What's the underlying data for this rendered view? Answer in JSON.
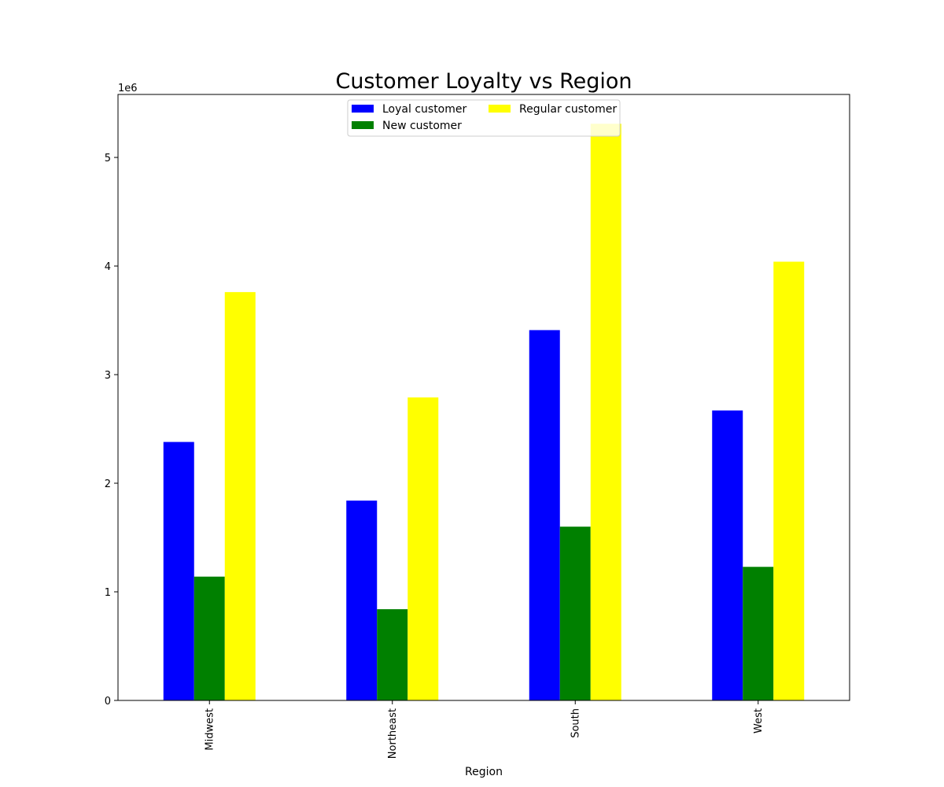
{
  "chart_data": {
    "type": "bar",
    "title": "Customer Loyalty vs Region",
    "xlabel": "Region",
    "ylabel": "",
    "y_scale_label": "1e6",
    "categories": [
      "Midwest",
      "Northeast",
      "South",
      "West"
    ],
    "series": [
      {
        "name": "Loyal customer",
        "color": "#0000ff",
        "values": [
          2380000,
          1840000,
          3410000,
          2670000
        ]
      },
      {
        "name": "New customer",
        "color": "#008000",
        "values": [
          1140000,
          840000,
          1600000,
          1230000
        ]
      },
      {
        "name": "Regular customer",
        "color": "#ffff00",
        "values": [
          3760000,
          2790000,
          5310000,
          4040000
        ]
      }
    ],
    "ylim": [
      0,
      5580000
    ],
    "yticks": [
      0,
      1000000,
      2000000,
      3000000,
      4000000,
      5000000
    ],
    "ytick_labels": [
      "0",
      "1",
      "2",
      "3",
      "4",
      "5"
    ],
    "grid": false,
    "legend_position": "upper center",
    "legend_columns": 2
  }
}
